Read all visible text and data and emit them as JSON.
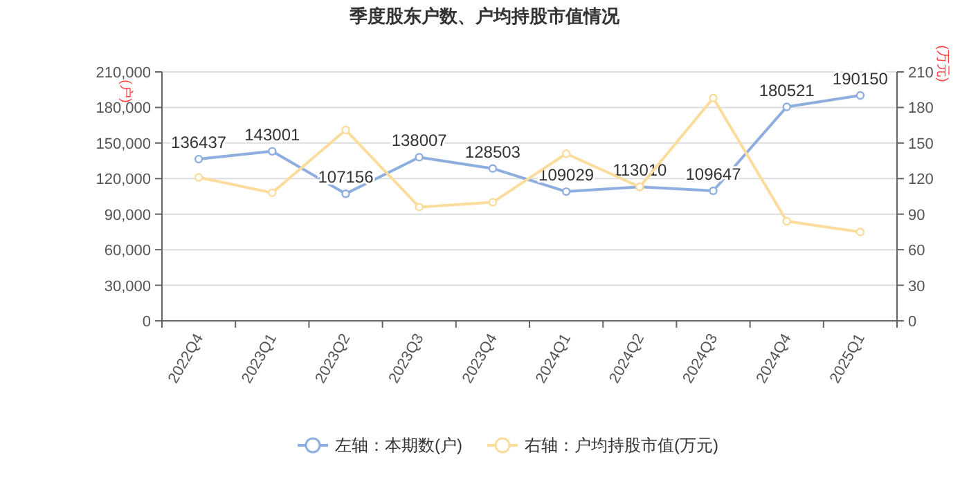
{
  "chart_data": {
    "type": "line",
    "title": "季度股东户数、户均持股市值情况",
    "categories": [
      "2022Q4",
      "2023Q1",
      "2023Q2",
      "2023Q3",
      "2023Q4",
      "2024Q1",
      "2024Q2",
      "2024Q3",
      "2024Q4",
      "2025Q1"
    ],
    "ylabel": "(户)",
    "y2label": "(万元)",
    "ylim": [
      0,
      210000
    ],
    "yticks": [
      {
        "value": 0,
        "label": "0"
      },
      {
        "value": 30000,
        "label": "30,000"
      },
      {
        "value": 60000,
        "label": "60,000"
      },
      {
        "value": 90000,
        "label": "90,000"
      },
      {
        "value": 120000,
        "label": "120,000"
      },
      {
        "value": 150000,
        "label": "150,000"
      },
      {
        "value": 180000,
        "label": "180,000"
      },
      {
        "value": 210000,
        "label": "210,000"
      }
    ],
    "y2lim": [
      0,
      210
    ],
    "y2ticks": [
      0,
      30,
      60,
      90,
      120,
      150,
      180,
      210
    ],
    "series": [
      {
        "name": "左轴：本期数(户)",
        "color": "#8eaee0",
        "values": [
          136437,
          143001,
          107156,
          138007,
          128503,
          109029,
          113010,
          109647,
          180521,
          190150
        ],
        "value_labels": [
          "136437",
          "143001",
          "107156",
          "138007",
          "128503",
          "109029",
          "113010",
          "109647",
          "180521",
          "190150"
        ]
      },
      {
        "name": "右轴：户均持股市值(万元)",
        "color": "#fcdc9c",
        "axis": "y2",
        "values": [
          121,
          108,
          161,
          96,
          100,
          141,
          113,
          188,
          84,
          75
        ]
      }
    ],
    "grid": "y",
    "legend": "bottom",
    "marker": "circle",
    "line_style": "solid"
  }
}
